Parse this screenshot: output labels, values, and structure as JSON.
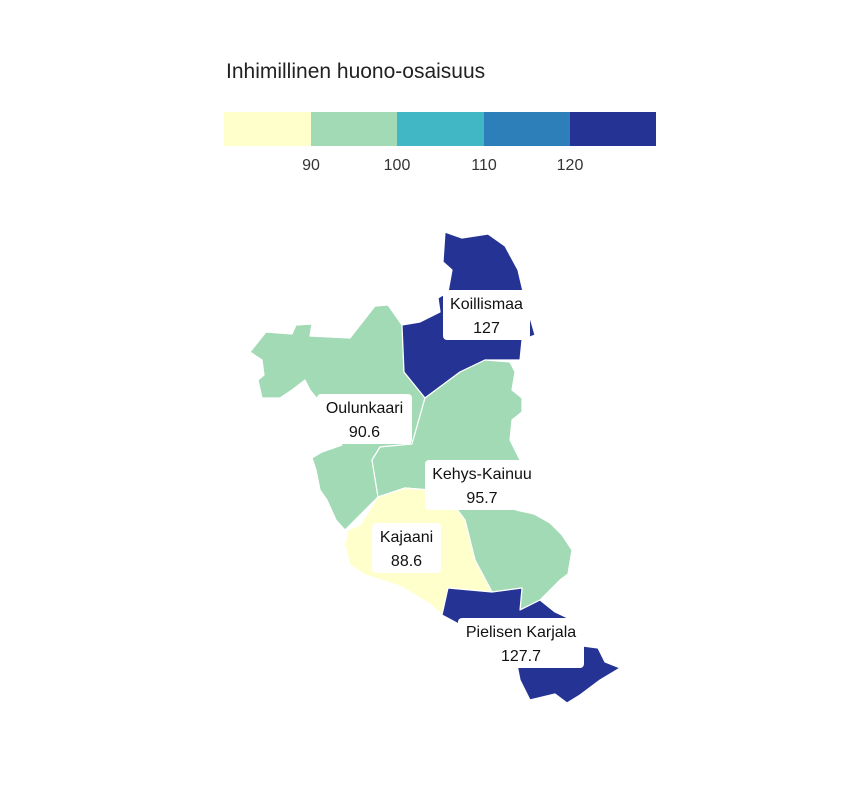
{
  "legend": {
    "title": "Inhimillinen huono-osaisuus",
    "breaks": [
      90,
      100,
      110,
      120
    ],
    "tick_labels": [
      "90",
      "100",
      "110",
      "120"
    ],
    "colors": [
      "#ffffcc",
      "#a1dab4",
      "#41b6c4",
      "#2c7fb8",
      "#253494"
    ]
  },
  "regions": [
    {
      "id": "koillismaa",
      "name": "Koillismaa",
      "value": 127,
      "value_label": "127"
    },
    {
      "id": "oulunkaari",
      "name": "Oulunkaari",
      "value": 90.6,
      "value_label": "90.6"
    },
    {
      "id": "kehys-kainuu",
      "name": "Kehys-Kainuu",
      "value": 95.7,
      "value_label": "95.7"
    },
    {
      "id": "kajaani",
      "name": "Kajaani",
      "value": 88.6,
      "value_label": "88.6"
    },
    {
      "id": "pielisen-karjala",
      "name": "Pielisen Karjala",
      "value": 127.7,
      "value_label": "127.7"
    }
  ]
}
